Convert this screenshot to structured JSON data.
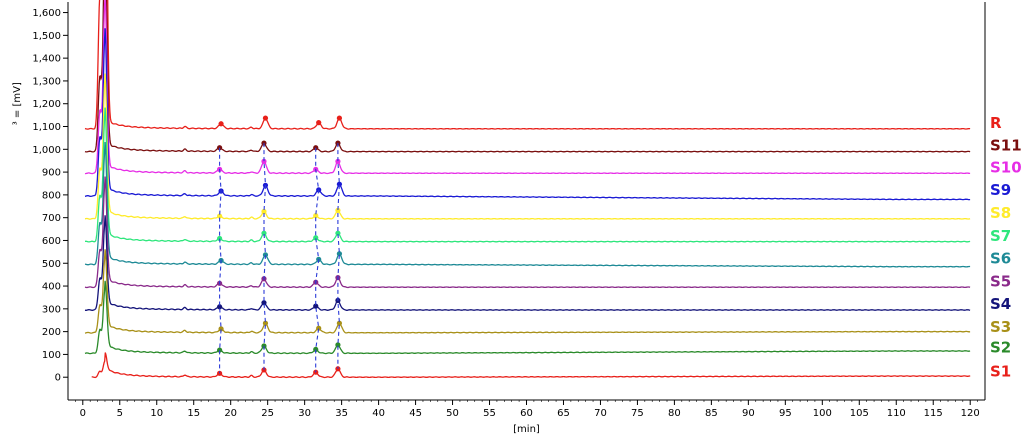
{
  "chart_data": {
    "type": "line",
    "title": "",
    "xlabel": "[min]",
    "ylabel": "³ = [mV]",
    "xlim": [
      -2,
      122
    ],
    "ylim": [
      -100,
      1620
    ],
    "xticks": [
      0,
      5,
      10,
      15,
      20,
      25,
      30,
      35,
      40,
      45,
      50,
      55,
      60,
      65,
      70,
      75,
      80,
      85,
      90,
      95,
      100,
      105,
      110,
      115,
      120
    ],
    "yticks": [
      0,
      100,
      200,
      300,
      400,
      500,
      600,
      700,
      800,
      900,
      1000,
      1100,
      1200,
      1300,
      1400,
      1500,
      1600
    ],
    "ytick_labels": [
      "0",
      "100",
      "200",
      "300",
      "400",
      "500",
      "600",
      "700",
      "800",
      "900",
      "1,000",
      "1,100",
      "1,200",
      "1,300",
      "1,400",
      "1,500",
      "1,600"
    ],
    "grid": false,
    "legend_position": "right",
    "main_peak_time": 3.0,
    "main_peak_heights": {
      "R": 1600,
      "S11": 900,
      "S10": 750,
      "S9": 700,
      "S8": 600,
      "S7": 550,
      "S6": 500,
      "S5": 450,
      "S4": 380,
      "S3": 330,
      "S2": 280,
      "S1": 70
    },
    "marked_peak_times": [
      18.5,
      24.5,
      31.5,
      34.5
    ],
    "series": [
      {
        "name": "R",
        "color": "#e8201a",
        "baseline": 1090,
        "peak_heights": [
          20,
          45,
          25,
          45
        ],
        "ends_at": 1090
      },
      {
        "name": "S11",
        "color": "#7a0f0f",
        "baseline": 990,
        "peak_heights": [
          15,
          35,
          15,
          35
        ],
        "ends_at": 990
      },
      {
        "name": "S10",
        "color": "#e62ee6",
        "baseline": 895,
        "peak_heights": [
          15,
          50,
          15,
          50
        ],
        "ends_at": 895
      },
      {
        "name": "S9",
        "color": "#1a1ad4",
        "baseline": 795,
        "peak_heights": [
          20,
          45,
          25,
          50
        ],
        "ends_at": 780
      },
      {
        "name": "S8",
        "color": "#ffeb2a",
        "baseline": 695,
        "peak_heights": [
          10,
          30,
          12,
          35
        ],
        "ends_at": 695
      },
      {
        "name": "S7",
        "color": "#2ee67c",
        "baseline": 595,
        "peak_heights": [
          12,
          35,
          15,
          35
        ],
        "ends_at": 595
      },
      {
        "name": "S6",
        "color": "#1e8a96",
        "baseline": 495,
        "peak_heights": [
          15,
          40,
          20,
          45
        ],
        "ends_at": 485
      },
      {
        "name": "S5",
        "color": "#8a2a8a",
        "baseline": 395,
        "peak_heights": [
          15,
          35,
          20,
          40
        ],
        "ends_at": 395
      },
      {
        "name": "S4",
        "color": "#14147a",
        "baseline": 295,
        "peak_heights": [
          12,
          30,
          15,
          40
        ],
        "ends_at": 295
      },
      {
        "name": "S3",
        "color": "#a89018",
        "baseline": 195,
        "peak_heights": [
          15,
          40,
          18,
          40
        ],
        "ends_at": 200
      },
      {
        "name": "S2",
        "color": "#2a8a2a",
        "baseline": 105,
        "peak_heights": [
          12,
          30,
          15,
          35
        ],
        "ends_at": 115
      },
      {
        "name": "S1",
        "color": "#e8201a",
        "baseline": 0,
        "peak_heights": [
          15,
          30,
          20,
          35
        ],
        "ends_at": 5
      }
    ]
  }
}
